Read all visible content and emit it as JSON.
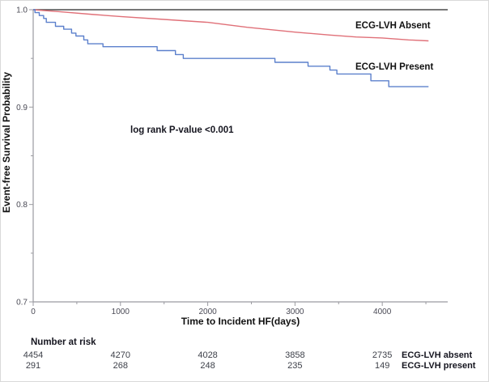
{
  "figure": {
    "background": "#ffffff",
    "border_color": "#d9d9d9"
  },
  "chart_data": {
    "type": "line",
    "subtype": "kaplan-meier-survival-step",
    "title": "",
    "xlabel": "Time to Incident HF(days)",
    "ylabel": "Event-free Survival Probability",
    "annotation": "log rank P-value <0.001",
    "xlim": [
      0,
      4750
    ],
    "ylim": [
      0.7,
      1.0
    ],
    "grid": false,
    "legend_position": "labels-at-line-end",
    "x_ticks": [
      {
        "v": 0,
        "label": "0"
      },
      {
        "v": 1000,
        "label": "1000"
      },
      {
        "v": 2000,
        "label": "2000"
      },
      {
        "v": 3000,
        "label": "3000"
      },
      {
        "v": 4000,
        "label": "4000"
      }
    ],
    "x_minor_ticks": [
      500,
      1500,
      2500,
      3500,
      4500
    ],
    "y_ticks": [
      {
        "v": 1.0,
        "label": "1.0"
      },
      {
        "v": 0.9,
        "label": "0.9"
      },
      {
        "v": 0.8,
        "label": "0.8"
      },
      {
        "v": 0.7,
        "label": "0.7"
      }
    ],
    "y_minor_ticks": [
      0.95,
      0.85,
      0.75
    ],
    "series": [
      {
        "name": "ECG-LVH Absent",
        "color": "#e07078",
        "step": false,
        "points": [
          [
            0,
            1.0
          ],
          [
            300,
            0.998
          ],
          [
            700,
            0.995
          ],
          [
            1000,
            0.993
          ],
          [
            1500,
            0.99
          ],
          [
            2000,
            0.987
          ],
          [
            2450,
            0.982
          ],
          [
            3000,
            0.977
          ],
          [
            3400,
            0.974
          ],
          [
            3700,
            0.972
          ],
          [
            4000,
            0.971
          ],
          [
            4300,
            0.969
          ],
          [
            4530,
            0.968
          ]
        ]
      },
      {
        "name": "ECG-LVH Present",
        "color": "#5c80cc",
        "step": true,
        "points": [
          [
            0,
            1.0
          ],
          [
            20,
            0.997
          ],
          [
            70,
            0.994
          ],
          [
            120,
            0.991
          ],
          [
            150,
            0.987
          ],
          [
            255,
            0.983
          ],
          [
            350,
            0.98
          ],
          [
            440,
            0.976
          ],
          [
            490,
            0.973
          ],
          [
            580,
            0.969
          ],
          [
            625,
            0.965
          ],
          [
            800,
            0.962
          ],
          [
            1420,
            0.958
          ],
          [
            1630,
            0.954
          ],
          [
            1720,
            0.95
          ],
          [
            2770,
            0.946
          ],
          [
            3150,
            0.942
          ],
          [
            3400,
            0.938
          ],
          [
            3480,
            0.934
          ],
          [
            3870,
            0.927
          ],
          [
            4075,
            0.921
          ],
          [
            4530,
            0.921
          ]
        ]
      }
    ]
  },
  "risk_table": {
    "title": "Number at risk",
    "times": [
      0,
      1000,
      2000,
      3000,
      4000
    ],
    "rows": [
      {
        "label": "ECG-LVH absent",
        "values": [
          "4454",
          "4270",
          "4028",
          "3858",
          "2735"
        ]
      },
      {
        "label": "ECG-LVH present",
        "values": [
          "291",
          "268",
          "248",
          "235",
          "149"
        ]
      }
    ]
  }
}
